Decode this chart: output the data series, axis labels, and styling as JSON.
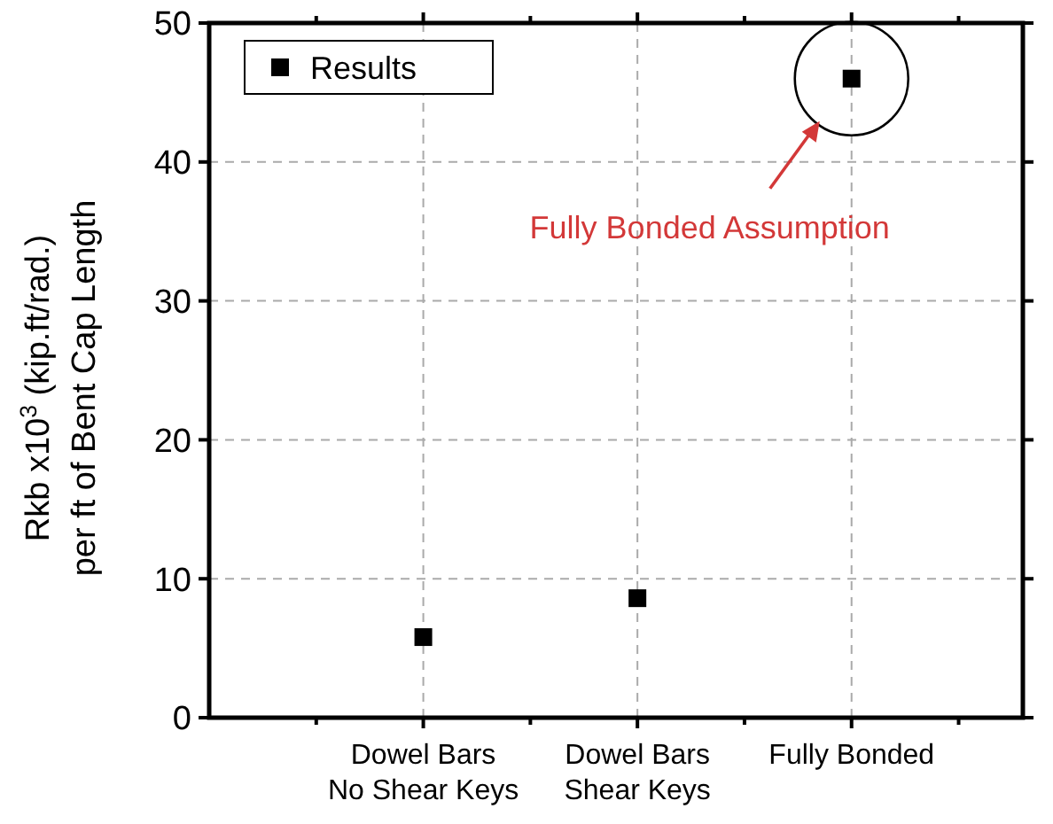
{
  "chart_data": {
    "type": "scatter",
    "ylabel": "Rkb x10$^{3}$ (kip.ft/rad.)\nper ft of Bent Cap Length",
    "categories": [
      "Dowel Bars\nNo Shear Keys",
      "Dowel Bars\nShear Keys",
      "Fully Bonded"
    ],
    "series": [
      {
        "name": "Results",
        "color": "#000000",
        "values": [
          5.8,
          8.6,
          46
        ]
      }
    ],
    "ylim": [
      0,
      50
    ],
    "yticks": [
      0,
      10,
      20,
      30,
      40,
      50
    ],
    "grid": true,
    "legend": "top left",
    "marker": "square",
    "annotations": [
      "Fully Bonded Assumption"
    ]
  }
}
